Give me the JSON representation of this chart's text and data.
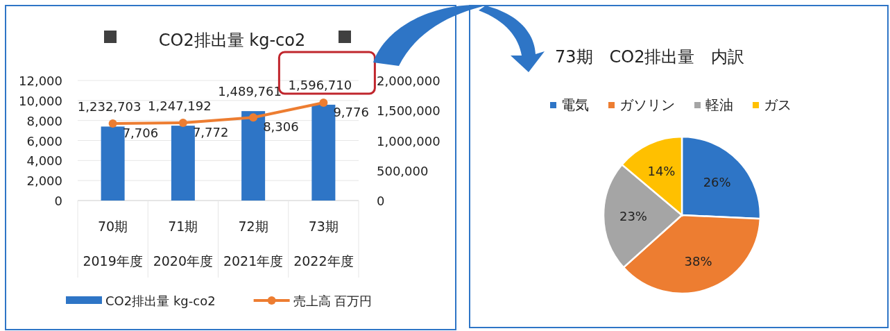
{
  "chart_data": [
    {
      "type": "bar",
      "title": "CO2排出量 kg-co2",
      "categories": [
        "70期\n2019年度",
        "71期\n2020年度",
        "72期\n2021年度",
        "73期\n2022年度"
      ],
      "series": [
        {
          "name": "CO2排出量 kg-co2",
          "type": "bar",
          "axis": "y2",
          "color": "#2e75c6",
          "values": [
            1232703,
            1247192,
            1489761,
            1596710
          ],
          "value_labels": [
            "1,232,703",
            "1,247,192",
            "1,489,761",
            "1,596,710"
          ]
        },
        {
          "name": "売上高 百万円",
          "type": "line",
          "color": "#ed7d31",
          "values": [
            7706,
            7772,
            8306,
            9776
          ],
          "value_labels": [
            "7,706",
            "7,772",
            "8,306",
            "9,776"
          ]
        }
      ],
      "ylim": [
        0,
        12000
      ],
      "yticks": [
        {
          "value": 0,
          "label": "0"
        },
        {
          "value": 2000,
          "label": "2,000"
        },
        {
          "value": 4000,
          "label": "4,000"
        },
        {
          "value": 6000,
          "label": "6,000"
        },
        {
          "value": 8000,
          "label": "8,000"
        },
        {
          "value": 10000,
          "label": "10,000"
        },
        {
          "value": 12000,
          "label": "12,000"
        }
      ],
      "y2lim": [
        0,
        2000000
      ],
      "y2ticks": [
        {
          "value": 0,
          "label": "0"
        },
        {
          "value": 500000,
          "label": "500,000"
        },
        {
          "value": 1000000,
          "label": "1,000,000"
        },
        {
          "value": 1500000,
          "label": "1,500,000"
        },
        {
          "value": 2000000,
          "label": "2,000,000"
        }
      ],
      "grid": "y",
      "marker": "circle",
      "legend": "bottom"
    },
    {
      "type": "pie",
      "title": "73期　CO2排出量　内訳",
      "categories": [
        "電気",
        "ガソリン",
        "軽油",
        "ガス"
      ],
      "values": [
        26,
        38,
        23,
        14
      ],
      "colors": [
        "#2e75c6",
        "#ed7d31",
        "#a5a5a5",
        "#ffc000"
      ],
      "value_labels": [
        "26%",
        "38%",
        "23%",
        "14%"
      ],
      "legend": "top"
    }
  ]
}
